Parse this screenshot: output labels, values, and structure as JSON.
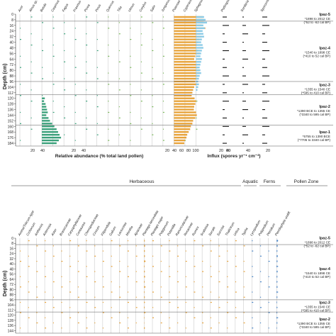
{
  "chart_data": [
    {
      "type": "pollen-diagram",
      "panel": "upper",
      "ylabel": "Depth (cm)",
      "y_ticks": [
        0,
        8,
        16,
        24,
        32,
        40,
        48,
        56,
        64,
        72,
        80,
        88,
        96,
        104,
        112,
        120,
        128,
        136,
        144,
        152,
        160,
        168,
        176,
        184
      ],
      "ylim": [
        0,
        188
      ],
      "taxa": [
        "Acer",
        "Alnus sp.",
        "Betula",
        "Carpinus",
        "Fagus",
        "Fraxinus",
        "Picea",
        "Pinus",
        "Quercus",
        "Tilia",
        "Ulmus",
        "Corylus",
        "Salix",
        "Juniperus",
        "Poaceae",
        "Cyperaceae",
        "Sphagnum"
      ],
      "series": [
        {
          "name": "Poaceae",
          "color": "#e8a33a",
          "depths": [
            4,
            8,
            12,
            16,
            20,
            24,
            28,
            32,
            36,
            40,
            44,
            48,
            52,
            56,
            60,
            64,
            68,
            72,
            76,
            80,
            84,
            88,
            92,
            96,
            100,
            104,
            108,
            112,
            116,
            120,
            124,
            128,
            132,
            136,
            140,
            144,
            148,
            152,
            156,
            160,
            164,
            168,
            172,
            176,
            180,
            184
          ],
          "values": [
            78,
            82,
            80,
            75,
            85,
            72,
            70,
            74,
            68,
            66,
            62,
            60,
            65,
            70,
            58,
            55,
            60,
            62,
            66,
            68,
            70,
            64,
            60,
            58,
            62,
            55,
            52,
            50,
            48,
            56,
            60,
            58,
            55,
            54,
            60,
            62,
            58,
            52,
            50,
            46,
            44,
            40,
            36,
            34,
            30,
            28
          ]
        },
        {
          "name": "Sphagnum",
          "color": "#8ccbe6",
          "depths": [
            4,
            8,
            12,
            16,
            20,
            24,
            28,
            32,
            36,
            40,
            44,
            48,
            52,
            56,
            60,
            64,
            68,
            72,
            76,
            80,
            84,
            88,
            92,
            96,
            100,
            104,
            108
          ],
          "values": [
            22,
            26,
            30,
            20,
            24,
            18,
            20,
            22,
            16,
            14,
            18,
            20,
            16,
            14,
            12,
            16,
            14,
            12,
            10,
            12,
            14,
            10,
            8,
            6,
            8,
            6,
            4
          ]
        },
        {
          "name": "Betula",
          "color": "#3aa07a",
          "depths": [
            120,
            124,
            128,
            132,
            136,
            140,
            144,
            148,
            152,
            156,
            160,
            164,
            168,
            172,
            176,
            180,
            184
          ],
          "values": [
            8,
            6,
            10,
            12,
            14,
            16,
            12,
            18,
            22,
            28,
            34,
            40,
            44,
            48,
            52,
            46,
            40
          ]
        }
      ],
      "xlabel_relative": "Relative abundance (% total land pollen)",
      "x_ticks_left": [
        "20",
        "40",
        "20",
        "40"
      ],
      "x_ticks_mid": [
        "20",
        "40",
        "60",
        "80",
        "100",
        "20",
        "40"
      ],
      "xlabel_influx": "Influx (spores yr⁻¹ cm⁻²)",
      "influx_ticks": [
        "80",
        "40",
        "20"
      ],
      "influx_headers": [
        "Podospora",
        "Sordaria",
        "Sporormiella"
      ]
    },
    {
      "type": "pollen-diagram",
      "panel": "lower",
      "ylabel": "Depth (cm)",
      "y_ticks": [
        0,
        8,
        16,
        24,
        32,
        40,
        48,
        56,
        64,
        72,
        80,
        88,
        96,
        104,
        112,
        120,
        128,
        136,
        144
      ],
      "ylim": [
        0,
        148
      ],
      "groups": [
        "Herbaceous",
        "Aquatic",
        "Ferns",
        "Pollen Zone"
      ],
      "taxa": [
        "Avena/Triticum-type",
        "Cichorium",
        "Anthemis",
        "Artemisia",
        "Aster",
        "Brassicaceae",
        "Caryophyllaceae",
        "Centaurea",
        "Chenopodiaceae",
        "Cirsium",
        "Filipendula",
        "Galium",
        "Lactuceae",
        "Mentha",
        "Apiaceae",
        "Plantago lanceolata",
        "Plantago major",
        "Polygonum",
        "Potentilla",
        "Ranunculaceae",
        "Rosaceae",
        "Rumex",
        "Scabiosa",
        "Secale",
        "Succisa",
        "Thalictrum",
        "Urtica",
        "Typha",
        "Lycopodium",
        "Polypodium",
        "Pteridium",
        "Pteridophyta undiff."
      ],
      "series": [
        {
          "name": "Plantago lanceolata",
          "color": "#e8a33a",
          "depths": [
            4,
            12,
            20,
            28,
            36,
            44,
            52,
            60,
            68,
            76,
            84,
            92,
            100,
            108,
            116,
            124,
            132,
            140
          ],
          "values": [
            6,
            8,
            5,
            7,
            9,
            4,
            6,
            8,
            5,
            7,
            4,
            6,
            3,
            5,
            4,
            3,
            2,
            4
          ]
        },
        {
          "name": "Pteridophyta undiff.",
          "color": "#4a86c8",
          "depths": [
            4,
            12,
            20,
            28,
            36,
            44,
            52,
            60,
            68,
            76,
            84,
            92,
            100,
            108,
            116,
            124,
            132,
            140
          ],
          "values": [
            10,
            8,
            6,
            9,
            7,
            5,
            8,
            6,
            4,
            7,
            5,
            6,
            4,
            3,
            5,
            4,
            6,
            3
          ]
        }
      ]
    }
  ],
  "zones_upper": [
    {
      "label": "Ipaz-5",
      "l1": "*1898 to 2012 CE",
      "l2": "(*52 to -62 cal BP)",
      "top": 0,
      "bottom": 10
    },
    {
      "label": "Ipaz-4",
      "l1": "*1540 to 1898 CE",
      "l2": "(*410 to 52 cal BP)",
      "top": 10,
      "bottom": 96
    },
    {
      "label": "Ipaz-3",
      "l1": "*1355 to 1540 CE",
      "l2": "(*595 to 410 cal BP)",
      "top": 96,
      "bottom": 115
    },
    {
      "label": "Ipaz-2",
      "l1": "*1390 BCE to 1355 CE",
      "l2": "(*3340 to 595 cal BP)",
      "top": 115,
      "bottom": 158
    },
    {
      "label": "Ipaz-1",
      "l1": "*5755 to 1390 BCE",
      "l2": "(*7705 to 3340 cal BP)",
      "top": 158,
      "bottom": 188
    }
  ],
  "zones_lower": [
    {
      "label": "Ipaz-5",
      "l1": "*1898 to 2012 CE",
      "l2": "(*52 to -62 cal BP)",
      "top": 0,
      "bottom": 10
    },
    {
      "label": "Ipaz-4",
      "l1": "*1540 to 1898 CE",
      "l2": "(*410 to 52 cal BP)",
      "top": 10,
      "bottom": 96
    },
    {
      "label": "Ipaz-3",
      "l1": "*1355 to 1540 CE",
      "l2": "(*595 to 410 cal BP)",
      "top": 96,
      "bottom": 115
    },
    {
      "label": "Ipaz-2",
      "l1": "*1390 BCE to 1355 CE",
      "l2": "(*3340 to 595 cal BP)",
      "top": 115,
      "bottom": 148
    }
  ]
}
